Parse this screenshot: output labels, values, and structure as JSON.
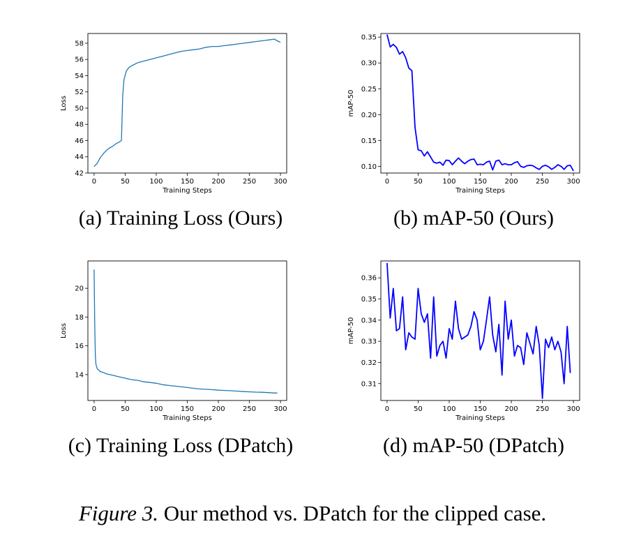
{
  "figure": {
    "label": "Figure 3.",
    "text": "Our method vs. DPatch for the clipped case."
  },
  "chart_data": [
    {
      "id": "a",
      "type": "line",
      "caption": "(a) Training Loss (Ours)",
      "xlabel": "Training Steps",
      "ylabel": "Loss",
      "xlim": [
        -10,
        310
      ],
      "ylim": [
        42,
        59.2
      ],
      "xticks": [
        0,
        50,
        100,
        150,
        200,
        250,
        300
      ],
      "yticks": [
        42,
        44,
        46,
        48,
        50,
        52,
        54,
        56,
        58
      ],
      "color": "#1f77b4",
      "series": [
        {
          "x": [
            0,
            5,
            10,
            15,
            20,
            25,
            30,
            35,
            40,
            44,
            46,
            48,
            52,
            56,
            60,
            70,
            80,
            90,
            100,
            110,
            120,
            130,
            140,
            150,
            160,
            170,
            180,
            190,
            200,
            210,
            220,
            230,
            240,
            250,
            260,
            270,
            280,
            290,
            295,
            300
          ],
          "values": [
            42.8,
            43.2,
            43.9,
            44.4,
            44.8,
            45.1,
            45.3,
            45.6,
            45.8,
            46.0,
            51.5,
            53.5,
            54.6,
            55.0,
            55.2,
            55.6,
            55.8,
            56.0,
            56.2,
            56.4,
            56.6,
            56.8,
            57.0,
            57.1,
            57.2,
            57.3,
            57.5,
            57.6,
            57.6,
            57.7,
            57.8,
            57.9,
            58.0,
            58.1,
            58.2,
            58.3,
            58.4,
            58.5,
            58.3,
            58.1
          ]
        }
      ]
    },
    {
      "id": "b",
      "type": "line",
      "caption": "(b) mAP-50 (Ours)",
      "xlabel": "Training Steps",
      "ylabel": "mAP-50",
      "xlim": [
        -10,
        310
      ],
      "ylim": [
        0.087,
        0.357
      ],
      "xticks": [
        0,
        50,
        100,
        150,
        200,
        250,
        300
      ],
      "yticks": [
        0.1,
        0.15,
        0.2,
        0.25,
        0.3,
        0.35
      ],
      "color": "#0000ff",
      "series": [
        {
          "x": [
            0,
            5,
            10,
            15,
            20,
            25,
            30,
            35,
            40,
            45,
            50,
            55,
            60,
            65,
            70,
            75,
            80,
            85,
            90,
            95,
            100,
            105,
            110,
            115,
            120,
            125,
            130,
            135,
            140,
            145,
            150,
            155,
            160,
            165,
            170,
            175,
            180,
            185,
            190,
            195,
            200,
            205,
            210,
            215,
            220,
            225,
            230,
            235,
            240,
            245,
            250,
            255,
            260,
            265,
            270,
            275,
            280,
            285,
            290,
            295,
            300
          ],
          "values": [
            0.355,
            0.331,
            0.336,
            0.33,
            0.317,
            0.322,
            0.31,
            0.29,
            0.285,
            0.175,
            0.132,
            0.13,
            0.12,
            0.128,
            0.118,
            0.108,
            0.106,
            0.108,
            0.102,
            0.112,
            0.111,
            0.103,
            0.11,
            0.116,
            0.11,
            0.105,
            0.11,
            0.113,
            0.114,
            0.103,
            0.104,
            0.103,
            0.108,
            0.11,
            0.093,
            0.11,
            0.112,
            0.103,
            0.105,
            0.103,
            0.103,
            0.107,
            0.109,
            0.1,
            0.098,
            0.101,
            0.102,
            0.101,
            0.097,
            0.094,
            0.1,
            0.102,
            0.099,
            0.094,
            0.098,
            0.103,
            0.1,
            0.094,
            0.101,
            0.102,
            0.091
          ]
        }
      ]
    },
    {
      "id": "c",
      "type": "line",
      "caption": "(c) Training Loss (DPatch)",
      "xlabel": "Training Steps",
      "ylabel": "Loss",
      "xlim": [
        -10,
        310
      ],
      "ylim": [
        12.2,
        21.9
      ],
      "xticks": [
        0,
        50,
        100,
        150,
        200,
        250,
        300
      ],
      "yticks": [
        14,
        16,
        18,
        20
      ],
      "color": "#1f77b4",
      "series": [
        {
          "x": [
            0,
            1,
            2,
            3,
            5,
            8,
            10,
            15,
            20,
            25,
            30,
            40,
            50,
            60,
            70,
            80,
            90,
            100,
            110,
            120,
            130,
            140,
            150,
            160,
            170,
            180,
            190,
            200,
            210,
            220,
            230,
            240,
            250,
            260,
            270,
            280,
            290,
            295
          ],
          "values": [
            21.3,
            17.5,
            15.3,
            14.7,
            14.4,
            14.3,
            14.2,
            14.15,
            14.05,
            14.0,
            13.95,
            13.85,
            13.75,
            13.65,
            13.6,
            13.5,
            13.45,
            13.4,
            13.3,
            13.25,
            13.2,
            13.15,
            13.1,
            13.05,
            13.0,
            12.98,
            12.95,
            12.92,
            12.9,
            12.88,
            12.85,
            12.82,
            12.8,
            12.78,
            12.77,
            12.75,
            12.72,
            12.72
          ]
        }
      ]
    },
    {
      "id": "d",
      "type": "line",
      "caption": "(d) mAP-50 (DPatch)",
      "xlabel": "Training Steps",
      "ylabel": "mAP-50",
      "xlim": [
        -10,
        310
      ],
      "ylim": [
        0.302,
        0.368
      ],
      "xticks": [
        0,
        50,
        100,
        150,
        200,
        250,
        300
      ],
      "yticks": [
        0.31,
        0.32,
        0.33,
        0.34,
        0.35,
        0.36
      ],
      "color": "#0000ff",
      "series": [
        {
          "x": [
            0,
            5,
            10,
            15,
            20,
            25,
            30,
            35,
            40,
            45,
            50,
            55,
            60,
            65,
            70,
            75,
            80,
            85,
            90,
            95,
            100,
            105,
            110,
            115,
            120,
            125,
            130,
            135,
            140,
            145,
            150,
            155,
            160,
            165,
            170,
            175,
            180,
            185,
            190,
            195,
            200,
            205,
            210,
            215,
            220,
            225,
            230,
            235,
            240,
            245,
            250,
            255,
            260,
            265,
            270,
            275,
            280,
            285,
            290,
            295
          ],
          "values": [
            0.367,
            0.341,
            0.355,
            0.335,
            0.336,
            0.351,
            0.326,
            0.334,
            0.332,
            0.331,
            0.355,
            0.343,
            0.339,
            0.343,
            0.322,
            0.351,
            0.323,
            0.328,
            0.33,
            0.322,
            0.336,
            0.331,
            0.349,
            0.336,
            0.331,
            0.332,
            0.333,
            0.337,
            0.344,
            0.34,
            0.326,
            0.33,
            0.34,
            0.351,
            0.333,
            0.325,
            0.338,
            0.314,
            0.349,
            0.331,
            0.34,
            0.323,
            0.328,
            0.327,
            0.319,
            0.334,
            0.329,
            0.324,
            0.337,
            0.328,
            0.303,
            0.331,
            0.327,
            0.332,
            0.326,
            0.33,
            0.325,
            0.31,
            0.337,
            0.315
          ]
        }
      ]
    }
  ]
}
